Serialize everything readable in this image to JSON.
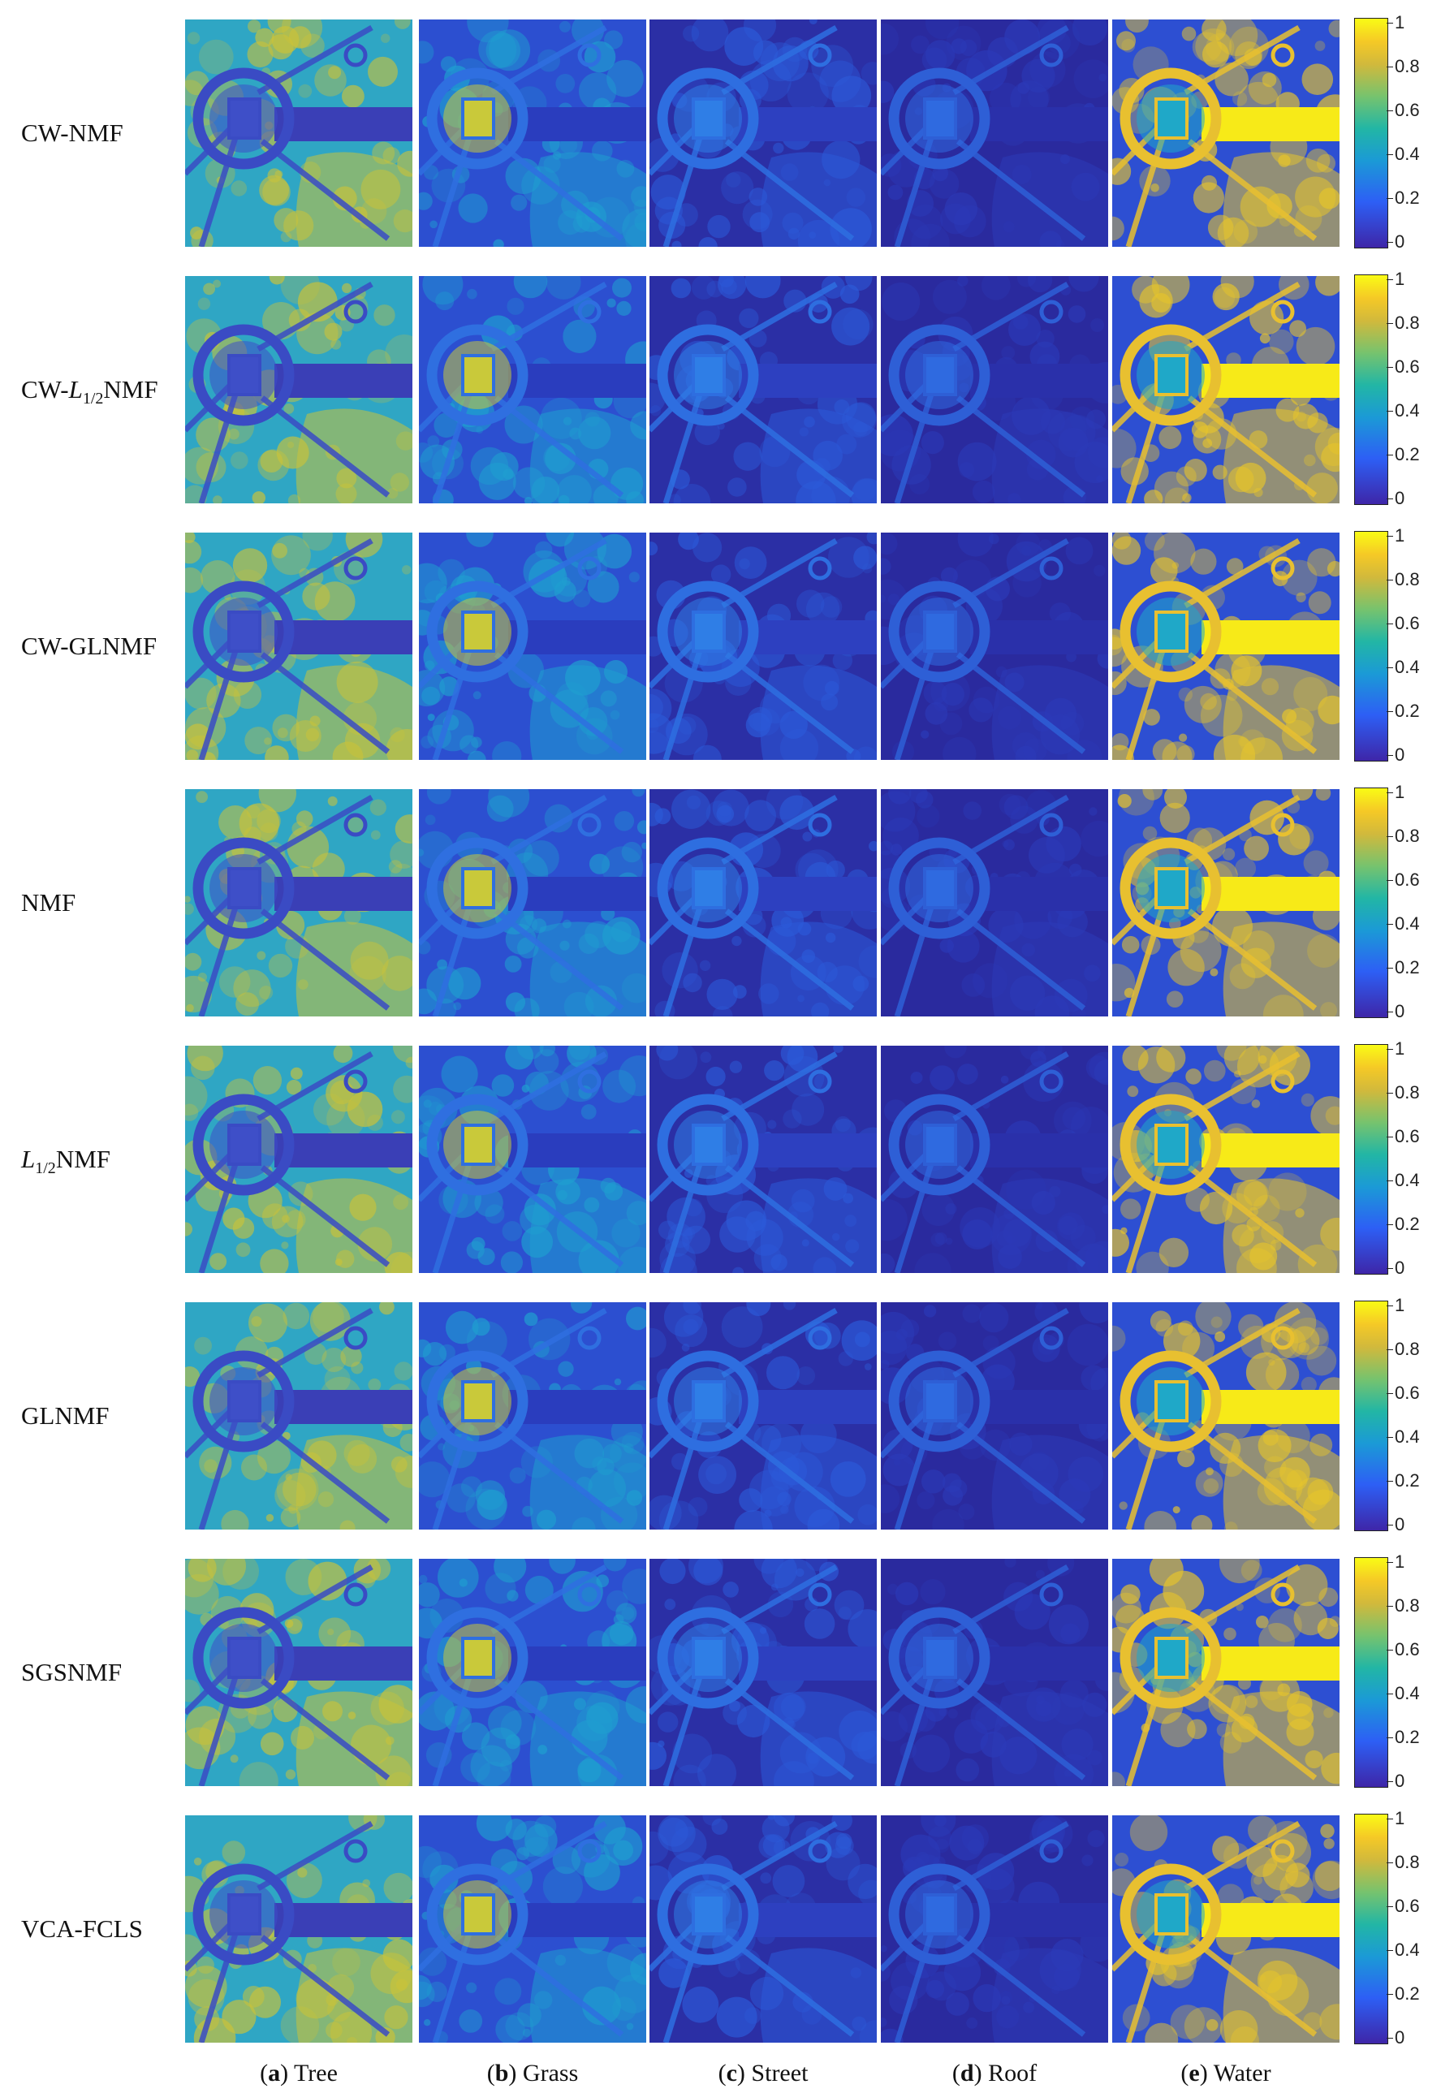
{
  "figure": {
    "rows": [
      {
        "prefix": "CW-",
        "label": "NMF"
      },
      {
        "prefix": "CW-",
        "label": "NMF",
        "italic": "L",
        "sub": "1/2"
      },
      {
        "prefix": "CW-",
        "label": "GLNMF"
      },
      {
        "prefix": "",
        "label": "NMF"
      },
      {
        "prefix": "",
        "label": "NMF",
        "italic": "L",
        "sub": "1/2"
      },
      {
        "prefix": "",
        "label": "GLNMF"
      },
      {
        "prefix": "",
        "label": "SGSNMF"
      },
      {
        "prefix": "",
        "label": "VCA-FCLS"
      }
    ],
    "columns": [
      {
        "letter": "a",
        "name": "Tree"
      },
      {
        "letter": "b",
        "name": "Grass"
      },
      {
        "letter": "c",
        "name": "Street"
      },
      {
        "letter": "d",
        "name": "Roof"
      },
      {
        "letter": "e",
        "name": "Water"
      }
    ],
    "colorbar_ticks": [
      "1",
      "0.8",
      "0.6",
      "0.4",
      "0.2",
      "0"
    ],
    "colormap": [
      "#3e26a8",
      "#2d5ff5",
      "#1b9ad6",
      "#22b6a5",
      "#76c36e",
      "#d1b93c",
      "#f5c926",
      "#f9fb15"
    ]
  }
}
